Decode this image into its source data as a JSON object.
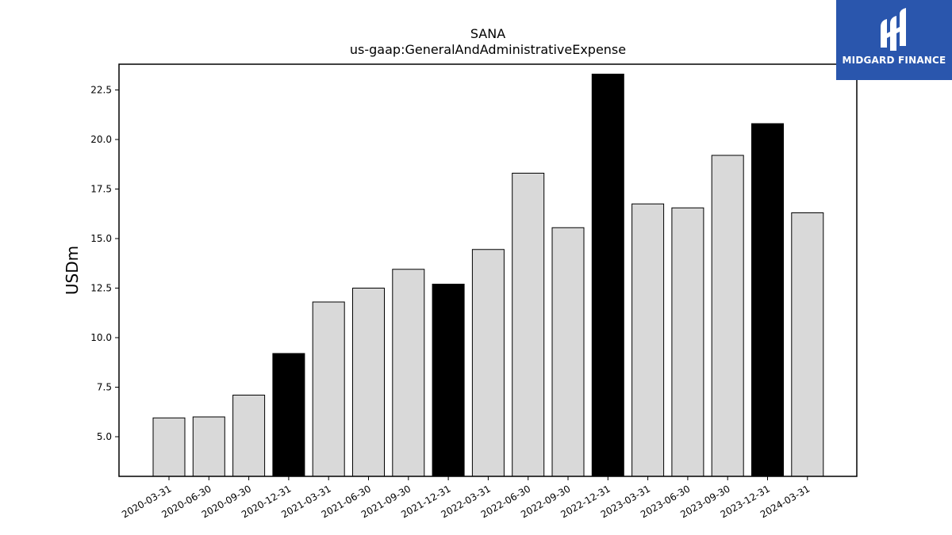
{
  "chart_data": {
    "type": "bar",
    "title": "SANA",
    "subtitle": "us-gaap:GeneralAndAdministrativeExpense",
    "xlabel": "",
    "ylabel": "USDm",
    "ylim": [
      3.0,
      23.8
    ],
    "yticks": [
      5.0,
      7.5,
      10.0,
      12.5,
      15.0,
      17.5,
      20.0,
      22.5
    ],
    "grid": false,
    "categories": [
      "2020-03-31",
      "2020-06-30",
      "2020-09-30",
      "2020-12-31",
      "2021-03-31",
      "2021-06-30",
      "2021-09-30",
      "2021-12-31",
      "2022-03-31",
      "2022-06-30",
      "2022-09-30",
      "2022-12-31",
      "2023-03-31",
      "2023-06-30",
      "2023-09-30",
      "2023-12-31",
      "2024-03-31"
    ],
    "values": [
      5.95,
      6.0,
      7.1,
      9.2,
      11.8,
      12.5,
      13.45,
      12.7,
      14.45,
      18.3,
      15.55,
      23.3,
      16.75,
      16.55,
      19.2,
      20.8,
      16.3
    ],
    "highlight_year_end": true,
    "colors": {
      "normal": "#d9d9d9",
      "year_end": "#000000",
      "edge": "#000000"
    }
  },
  "logo": {
    "text": "MIDGARD FINANCE",
    "background": "#2a56ad"
  }
}
